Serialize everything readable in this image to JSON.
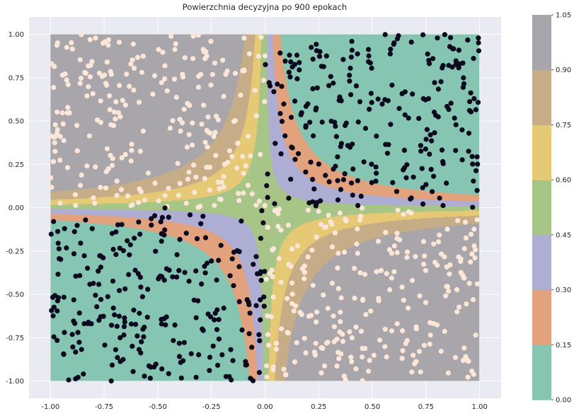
{
  "chart_data": {
    "type": "scatter",
    "title": "Powierzchnia decyzyjna po 900 epokach",
    "xlabel": "",
    "ylabel": "",
    "xlim": [
      -1.1,
      1.1
    ],
    "ylim": [
      -1.1,
      1.1
    ],
    "x_ticks": [
      "-1.00",
      "-0.75",
      "-0.50",
      "-0.25",
      "0.00",
      "0.25",
      "0.50",
      "0.75",
      "1.00"
    ],
    "y_ticks": [
      "-1.00",
      "-0.75",
      "-0.50",
      "-0.25",
      "0.00",
      "0.25",
      "0.50",
      "0.75",
      "1.00"
    ],
    "grid": true,
    "decision_surface": {
      "function": "0.5 + 0.5*tanh(-k*x*y)",
      "domain": [
        -1,
        1
      ],
      "levels": [
        0.0,
        0.15,
        0.3,
        0.45,
        0.6,
        0.75,
        0.9,
        1.05
      ],
      "colors": [
        "#85c5b2",
        "#e2a27d",
        "#aeadd4",
        "#a6c587",
        "#e6c974",
        "#c7ad87",
        "#a8a6ab"
      ]
    },
    "colorbar": {
      "tick_labels": [
        "0.00",
        "0.15",
        "0.30",
        "0.45",
        "0.60",
        "0.75",
        "0.90",
        "1.05"
      ]
    },
    "series": [
      {
        "class": 0,
        "color": "#0d0a1f",
        "rule": "x*y > 0",
        "count": 500
      },
      {
        "class": 1,
        "color": "#fbe6d8",
        "rule": "x*y < 0",
        "count": 500
      }
    ]
  }
}
